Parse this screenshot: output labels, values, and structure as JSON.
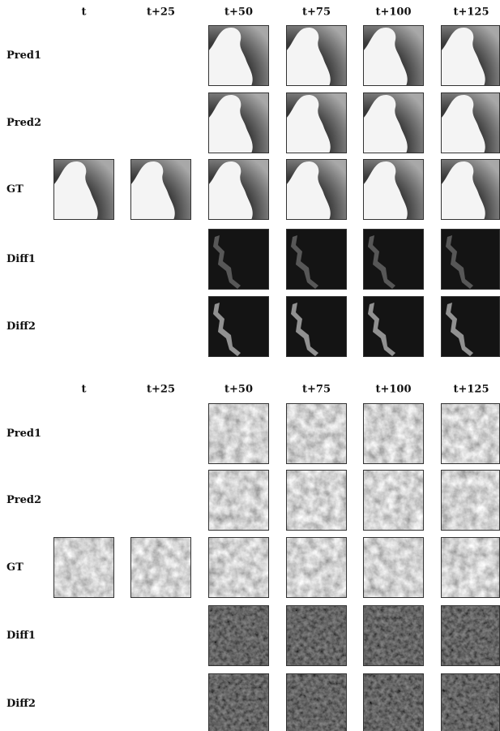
{
  "panels": [
    {
      "columns": [
        "t",
        "t+25",
        "t+50",
        "t+75",
        "t+100",
        "t+125"
      ],
      "rows": [
        "Pred1",
        "Pred2",
        "GT",
        "Diff1",
        "Diff2"
      ]
    },
    {
      "columns": [
        "t",
        "t+25",
        "t+50",
        "t+75",
        "t+100",
        "t+125"
      ],
      "rows": [
        "Pred1",
        "Pred2",
        "GT",
        "Diff1",
        "Diff2"
      ]
    }
  ]
}
